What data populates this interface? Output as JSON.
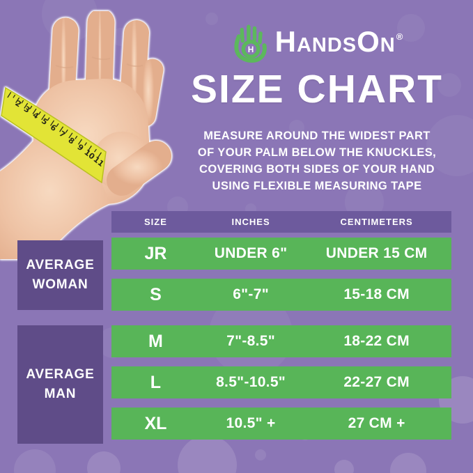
{
  "logo": {
    "brand": "HandsOn",
    "registered": "®",
    "icon_color": "#5cb85c"
  },
  "title": "SIZE CHART",
  "instructions": {
    "line1": "MEASURE AROUND THE WIDEST PART",
    "line2": "OF YOUR PALM BELOW THE KNUCKLES,",
    "line3": "COVERING BOTH SIDES OF YOUR HAND",
    "line4": "USING FLEXIBLE MEASURING TAPE"
  },
  "hand_graphic": {
    "description": "open palm with yellow measuring tape wrapped around widest part",
    "tape_numbers": [
      "2",
      "3",
      "4",
      "5",
      "6",
      "7",
      "8",
      "9",
      "10",
      "11"
    ],
    "tape_color": "#e2e436",
    "skin_color": "#eec2a4"
  },
  "table": {
    "headers": {
      "size": "SIZE",
      "inches": "INCHES",
      "centimeters": "CENTIMETERS"
    },
    "groups": [
      {
        "label_line1": "AVERAGE",
        "label_line2": "WOMAN",
        "rows": [
          {
            "size": "JR",
            "inches": "UNDER 6\"",
            "centimeters": "UNDER 15 CM"
          },
          {
            "size": "S",
            "inches": "6\"-7\"",
            "centimeters": "15-18 CM"
          }
        ]
      },
      {
        "label_line1": "AVERAGE",
        "label_line2": "MAN",
        "rows": [
          {
            "size": "M",
            "inches": "7\"-8.5\"",
            "centimeters": "18-22 CM"
          },
          {
            "size": "L",
            "inches": "8.5\"-10.5\"",
            "centimeters": "22-27 CM"
          },
          {
            "size": "XL",
            "inches": "10.5\" +",
            "centimeters": "27 CM +"
          }
        ]
      }
    ],
    "colors": {
      "row_green": "#58b558",
      "header_purple": "#6d5a9d",
      "label_purple": "#5f4c88",
      "background": "#8b76b6"
    }
  }
}
